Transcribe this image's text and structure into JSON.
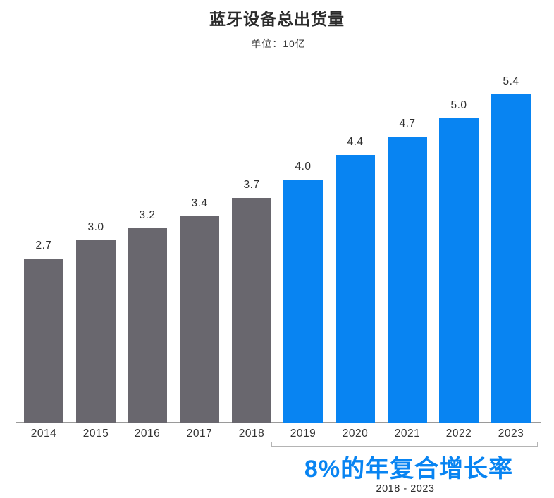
{
  "header": {
    "title": "蓝牙设备总出货量",
    "unit_label": "单位：10亿"
  },
  "chart_data": {
    "type": "bar",
    "title": "蓝牙设备总出货量",
    "subtitle": "单位：10亿",
    "categories": [
      "2014",
      "2015",
      "2016",
      "2017",
      "2018",
      "2019",
      "2020",
      "2021",
      "2022",
      "2023"
    ],
    "values": [
      2.7,
      3.0,
      3.2,
      3.4,
      3.7,
      4.0,
      4.4,
      4.7,
      5.0,
      5.4
    ],
    "value_labels": [
      "2.7",
      "3.0",
      "3.2",
      "3.4",
      "3.7",
      "4.0",
      "4.4",
      "4.7",
      "5.0",
      "5.4"
    ],
    "bar_colors": [
      "#69676e",
      "#69676e",
      "#69676e",
      "#69676e",
      "#69676e",
      "#0884f2",
      "#0884f2",
      "#0884f2",
      "#0884f2",
      "#0884f2"
    ],
    "colors": {
      "historical": "#69676e",
      "forecast": "#0884f2",
      "axis_line": "#9a9a9a"
    },
    "xlabel": "",
    "ylabel": "",
    "ylim": [
      0,
      5.8
    ],
    "grid": false,
    "legend": "none",
    "value_labels_position": "above-bars"
  },
  "annotation": {
    "headline": "8%的年复合增长率",
    "range_label": "2018 - 2023",
    "headline_color": "#0884f2",
    "bracket_color": "#b4b4b4",
    "bracket_span_years": [
      "2019",
      "2023"
    ]
  }
}
